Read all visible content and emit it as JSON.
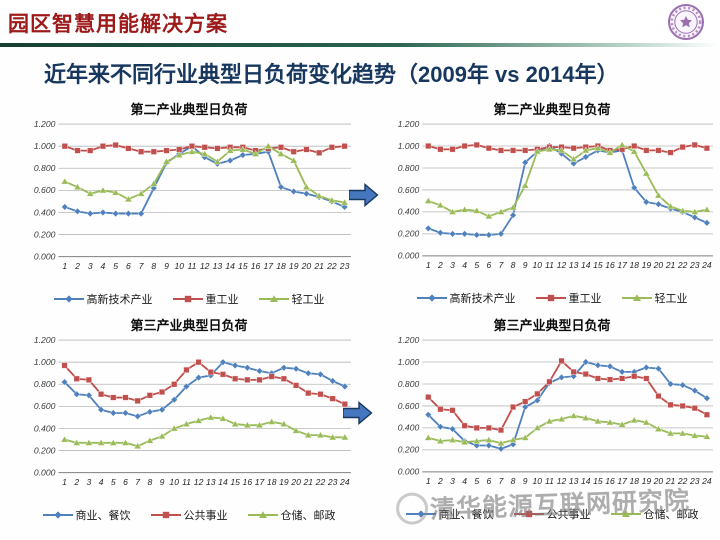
{
  "header": {
    "title": "园区智慧用能解决方案"
  },
  "main": {
    "title": "近年来不同行业典型日负荷变化趋势（2009年 vs 2014年）"
  },
  "watermark": {
    "text": "清华能源互联网研究院"
  },
  "colors": {
    "header_red": "#9e1a1a",
    "title_navy": "#17375e",
    "series_blue": "#4f81bd",
    "series_red": "#c0504d",
    "series_green": "#9bbb59",
    "arrow_blue": "#4576be",
    "arrow_border": "#17375e",
    "divider_green": "#173f33",
    "watermark_gray": "#7a7a7a"
  },
  "chart_data": [
    {
      "id": "secondary-industry-2009",
      "type": "line",
      "title": "第二产业典型日负荷",
      "x": [
        1,
        2,
        3,
        4,
        5,
        6,
        7,
        8,
        9,
        10,
        11,
        12,
        13,
        14,
        15,
        16,
        17,
        18,
        19,
        20,
        21,
        22,
        23
      ],
      "ylim": [
        0,
        1.2
      ],
      "yticks": [
        "0.000",
        "0.200",
        "0.400",
        "0.600",
        "0.800",
        "1.000",
        "1.200"
      ],
      "grid": true,
      "legend_position": "bottom",
      "series": [
        {
          "name": "高新技术产业",
          "color": "#4f81bd",
          "marker": "diamond",
          "values": [
            0.45,
            0.41,
            0.39,
            0.4,
            0.39,
            0.39,
            0.39,
            0.62,
            0.85,
            0.93,
            1.0,
            0.9,
            0.84,
            0.87,
            0.92,
            0.93,
            0.95,
            0.63,
            0.59,
            0.57,
            0.54,
            0.5,
            0.45
          ]
        },
        {
          "name": "重工业",
          "color": "#c0504d",
          "marker": "square",
          "values": [
            1.0,
            0.96,
            0.96,
            1.0,
            1.01,
            0.98,
            0.95,
            0.95,
            0.96,
            0.97,
            1.0,
            0.99,
            0.98,
            0.99,
            0.99,
            0.96,
            0.98,
            0.99,
            0.95,
            0.97,
            0.94,
            0.99,
            1.0
          ]
        },
        {
          "name": "轻工业",
          "color": "#9bbb59",
          "marker": "triangle",
          "values": [
            0.68,
            0.63,
            0.57,
            0.6,
            0.58,
            0.52,
            0.57,
            0.66,
            0.86,
            0.92,
            0.95,
            0.93,
            0.86,
            0.96,
            0.97,
            0.93,
            1.0,
            0.93,
            0.87,
            0.63,
            0.55,
            0.51,
            0.49
          ]
        }
      ]
    },
    {
      "id": "secondary-industry-2014",
      "type": "line",
      "title": "第二产业典型日负荷",
      "x": [
        1,
        2,
        3,
        4,
        5,
        6,
        7,
        8,
        9,
        10,
        11,
        12,
        13,
        14,
        15,
        16,
        17,
        18,
        19,
        20,
        21,
        22,
        23,
        24
      ],
      "ylim": [
        0,
        1.2
      ],
      "yticks": [
        "0.000",
        "0.200",
        "0.400",
        "0.600",
        "0.800",
        "1.000",
        "1.200"
      ],
      "grid": true,
      "legend_position": "bottom",
      "series": [
        {
          "name": "高新技术产业",
          "color": "#4f81bd",
          "marker": "diamond",
          "values": [
            0.25,
            0.21,
            0.2,
            0.2,
            0.19,
            0.19,
            0.2,
            0.37,
            0.85,
            0.95,
            1.0,
            0.93,
            0.84,
            0.9,
            0.96,
            0.94,
            0.96,
            0.62,
            0.49,
            0.47,
            0.43,
            0.4,
            0.35,
            0.3
          ]
        },
        {
          "name": "重工业",
          "color": "#c0504d",
          "marker": "square",
          "values": [
            1.0,
            0.97,
            0.97,
            1.0,
            1.01,
            0.98,
            0.96,
            0.96,
            0.96,
            0.97,
            0.99,
            0.99,
            0.98,
            0.99,
            1.0,
            0.96,
            0.97,
            1.0,
            0.96,
            0.96,
            0.94,
            0.99,
            1.01,
            0.98
          ]
        },
        {
          "name": "轻工业",
          "color": "#9bbb59",
          "marker": "triangle",
          "values": [
            0.5,
            0.46,
            0.4,
            0.42,
            0.41,
            0.36,
            0.4,
            0.44,
            0.64,
            0.95,
            0.97,
            0.96,
            0.88,
            0.96,
            0.98,
            0.94,
            1.01,
            0.95,
            0.75,
            0.55,
            0.45,
            0.41,
            0.4,
            0.42
          ]
        }
      ]
    },
    {
      "id": "tertiary-industry-2009",
      "type": "line",
      "title": "第三产业典型日负荷",
      "x": [
        1,
        2,
        3,
        4,
        5,
        6,
        7,
        8,
        9,
        10,
        11,
        12,
        13,
        14,
        15,
        16,
        17,
        18,
        19,
        20,
        21,
        22,
        23,
        24
      ],
      "ylim": [
        0,
        1.2
      ],
      "yticks": [
        "0.000",
        "0.200",
        "0.400",
        "0.600",
        "0.800",
        "1.000",
        "1.200"
      ],
      "grid": true,
      "legend_position": "bottom",
      "series": [
        {
          "name": "商业、餐饮",
          "color": "#4f81bd",
          "marker": "diamond",
          "values": [
            0.82,
            0.71,
            0.7,
            0.57,
            0.54,
            0.54,
            0.51,
            0.55,
            0.57,
            0.66,
            0.78,
            0.86,
            0.88,
            1.0,
            0.97,
            0.95,
            0.92,
            0.9,
            0.95,
            0.94,
            0.9,
            0.89,
            0.83,
            0.78
          ]
        },
        {
          "name": "公共事业",
          "color": "#c0504d",
          "marker": "square",
          "values": [
            0.97,
            0.85,
            0.84,
            0.71,
            0.68,
            0.68,
            0.65,
            0.7,
            0.73,
            0.8,
            0.93,
            1.0,
            0.91,
            0.89,
            0.85,
            0.84,
            0.84,
            0.87,
            0.85,
            0.79,
            0.72,
            0.71,
            0.67,
            0.62
          ]
        },
        {
          "name": "仓储、邮政",
          "color": "#9bbb59",
          "marker": "triangle",
          "values": [
            0.3,
            0.27,
            0.27,
            0.27,
            0.27,
            0.27,
            0.24,
            0.29,
            0.33,
            0.4,
            0.44,
            0.47,
            0.5,
            0.49,
            0.44,
            0.43,
            0.43,
            0.46,
            0.44,
            0.38,
            0.34,
            0.34,
            0.32,
            0.32
          ]
        }
      ]
    },
    {
      "id": "tertiary-industry-2014",
      "type": "line",
      "title": "第三产业典型日负荷",
      "x": [
        1,
        2,
        3,
        4,
        5,
        6,
        7,
        8,
        9,
        10,
        11,
        12,
        13,
        14,
        15,
        16,
        17,
        18,
        19,
        20,
        21,
        22,
        23,
        24
      ],
      "ylim": [
        0,
        1.2
      ],
      "yticks": [
        "0.000",
        "0.200",
        "0.400",
        "0.600",
        "0.800",
        "1.000",
        "1.200"
      ],
      "grid": true,
      "legend_position": "bottom",
      "series": [
        {
          "name": "商业、餐饮",
          "color": "#4f81bd",
          "marker": "diamond",
          "values": [
            0.52,
            0.41,
            0.39,
            0.28,
            0.24,
            0.24,
            0.21,
            0.25,
            0.59,
            0.65,
            0.81,
            0.86,
            0.87,
            1.0,
            0.97,
            0.96,
            0.91,
            0.91,
            0.95,
            0.94,
            0.8,
            0.79,
            0.74,
            0.67
          ]
        },
        {
          "name": "公共事业",
          "color": "#c0504d",
          "marker": "square",
          "values": [
            0.68,
            0.57,
            0.56,
            0.42,
            0.4,
            0.4,
            0.38,
            0.59,
            0.64,
            0.71,
            0.82,
            1.01,
            0.91,
            0.89,
            0.85,
            0.84,
            0.85,
            0.87,
            0.85,
            0.69,
            0.61,
            0.6,
            0.58,
            0.52
          ]
        },
        {
          "name": "仓储、邮政",
          "color": "#9bbb59",
          "marker": "triangle",
          "values": [
            0.31,
            0.28,
            0.29,
            0.27,
            0.28,
            0.29,
            0.26,
            0.29,
            0.31,
            0.4,
            0.46,
            0.48,
            0.51,
            0.49,
            0.46,
            0.45,
            0.43,
            0.47,
            0.45,
            0.39,
            0.35,
            0.35,
            0.33,
            0.32
          ]
        }
      ]
    }
  ]
}
